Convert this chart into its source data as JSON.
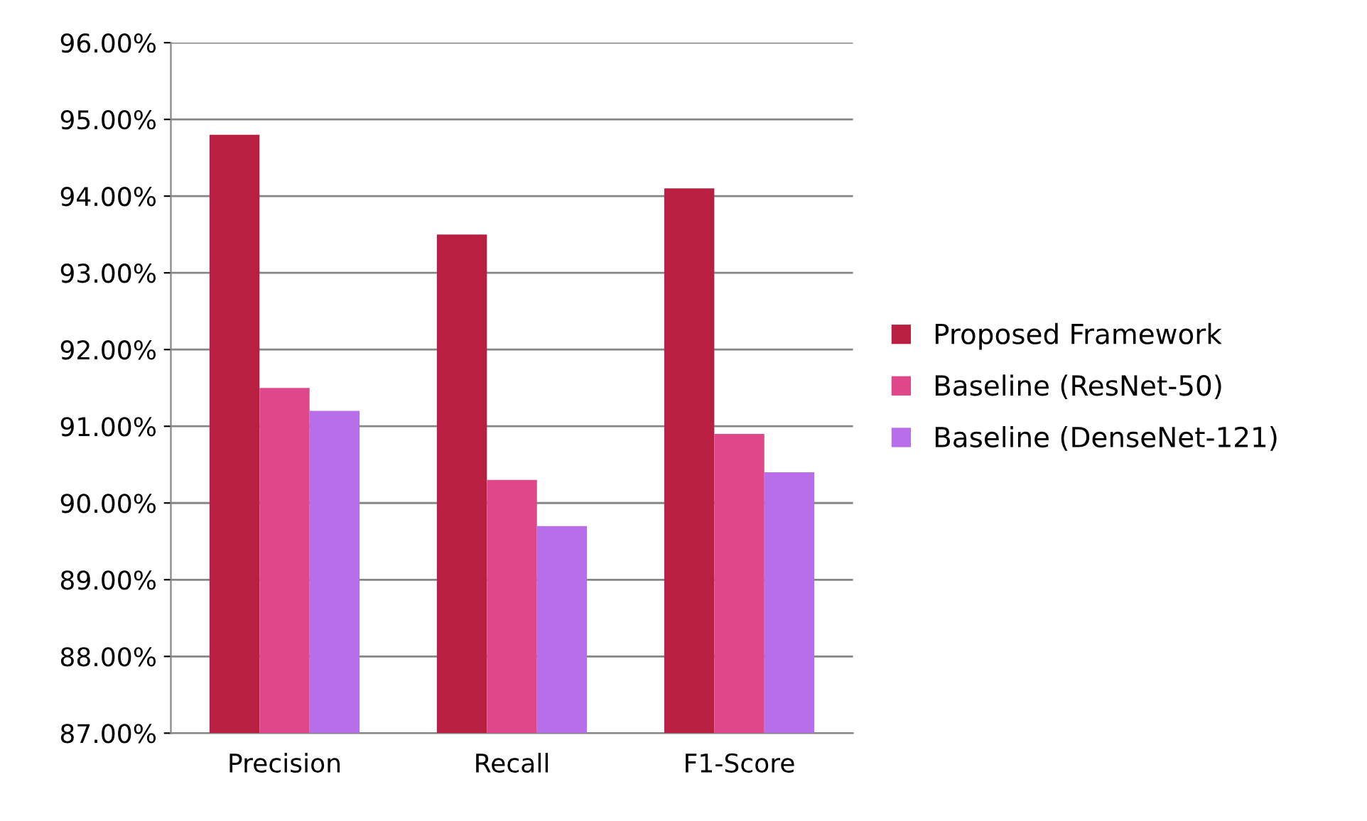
{
  "chart_data": {
    "type": "bar",
    "categories": [
      "Precision",
      "Recall",
      "F1-Score"
    ],
    "series": [
      {
        "name": "Proposed Framework",
        "color": "#b81f40",
        "values": [
          94.8,
          93.5,
          94.1
        ]
      },
      {
        "name": "Baseline (ResNet-50)",
        "color": "#e0478a",
        "values": [
          91.5,
          90.3,
          90.9
        ]
      },
      {
        "name": "Baseline (DenseNet-121)",
        "color": "#b86ee8",
        "values": [
          91.2,
          89.7,
          90.4
        ]
      }
    ],
    "ylim": [
      87,
      96
    ],
    "yticks": [
      {
        "value": 87,
        "label": "87.00%"
      },
      {
        "value": 88,
        "label": "88.00%"
      },
      {
        "value": 89,
        "label": "89.00%"
      },
      {
        "value": 90,
        "label": "90.00%"
      },
      {
        "value": 91,
        "label": "91.00%"
      },
      {
        "value": 92,
        "label": "92.00%"
      },
      {
        "value": 93,
        "label": "93.00%"
      },
      {
        "value": 94,
        "label": "94.00%"
      },
      {
        "value": 95,
        "label": "95.00%"
      },
      {
        "value": 96,
        "label": "96.00%"
      }
    ],
    "grid": "y",
    "legend": "right"
  }
}
